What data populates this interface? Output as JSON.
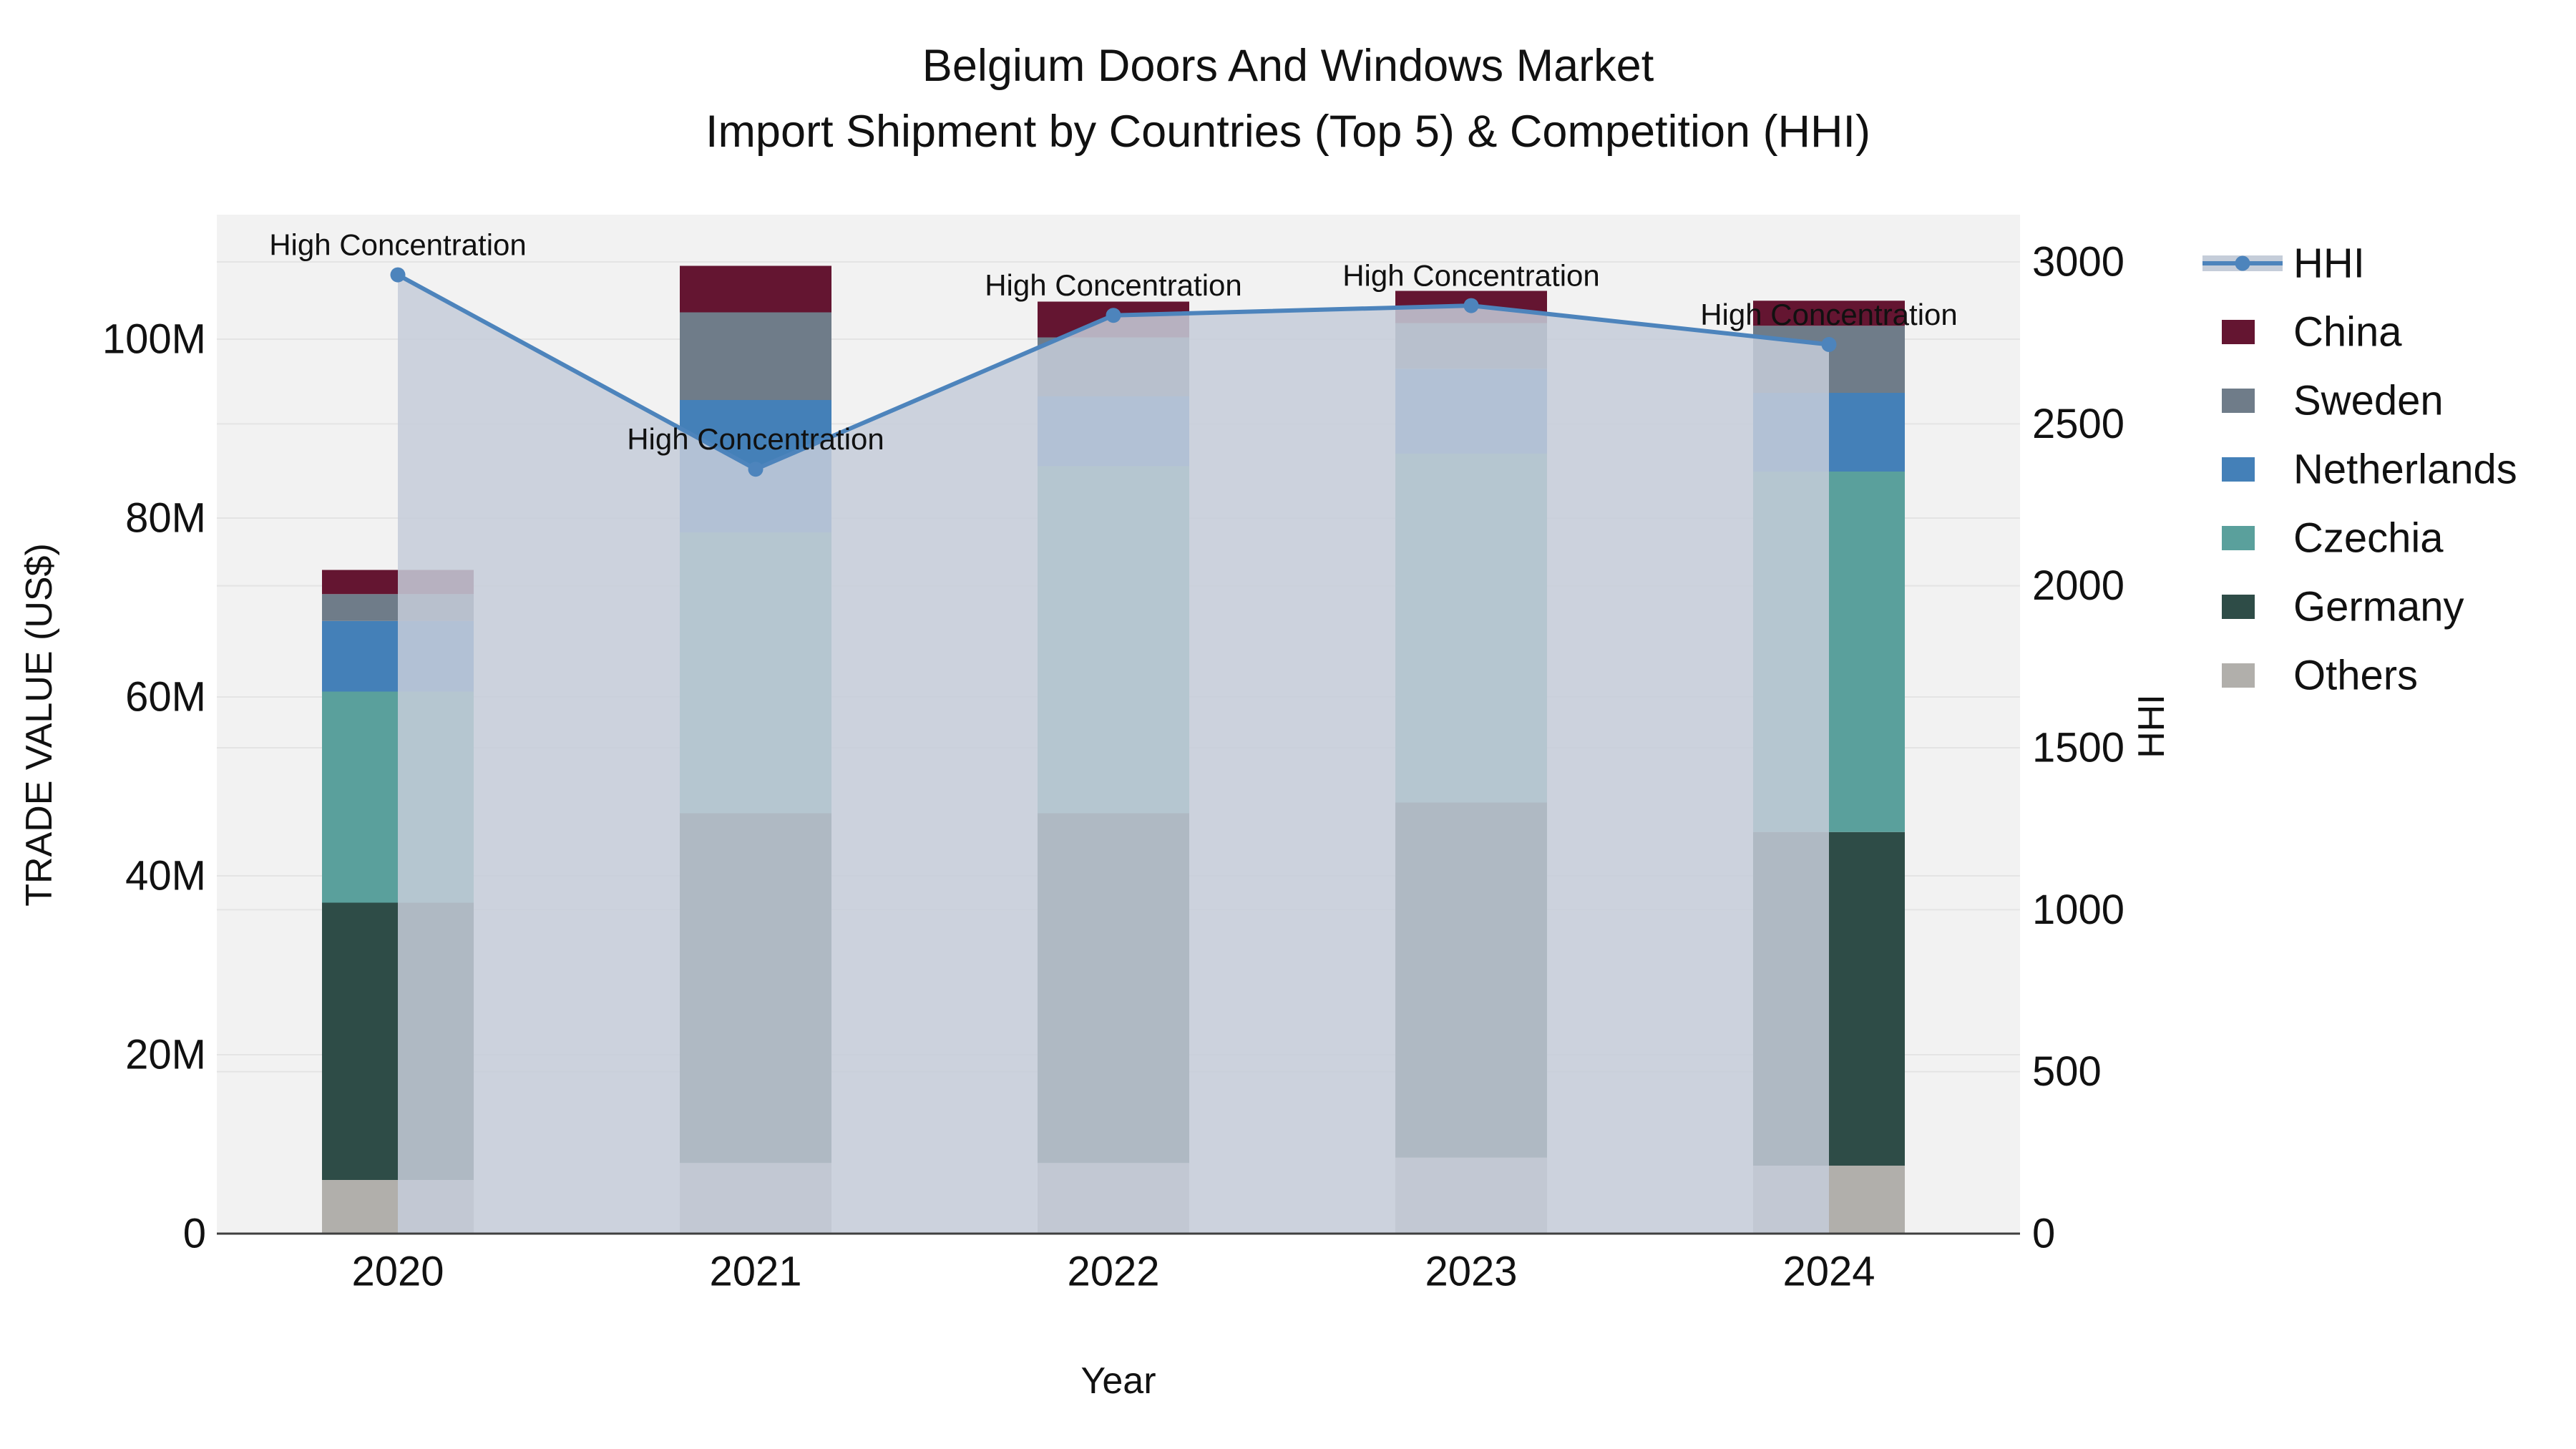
{
  "title": {
    "line1": "Belgium Doors And Windows Market",
    "line2": "Import Shipment by Countries (Top 5) & Competition (HHI)"
  },
  "axes": {
    "x": {
      "title": "Year",
      "ticks": [
        "2020",
        "2021",
        "2022",
        "2023",
        "2024"
      ]
    },
    "y_left": {
      "title": "TRADE VALUE (US$)",
      "ticks": [
        "0",
        "20M",
        "40M",
        "60M",
        "80M",
        "100M"
      ],
      "tick_values_musd": [
        0,
        20,
        40,
        60,
        80,
        100
      ]
    },
    "y_right": {
      "title": "HHI",
      "ticks": [
        "0",
        "500",
        "1000",
        "1500",
        "2000",
        "2500",
        "3000"
      ],
      "tick_values": [
        0,
        500,
        1000,
        1500,
        2000,
        2500,
        3000
      ]
    }
  },
  "annotation_text": "High Concentration",
  "colors": {
    "plot_bg": "#f2f2f2",
    "grid": "#e4e4e4",
    "axis_line": "#3f3f3f",
    "text": "#111111",
    "hhi_line": "#4d84bc",
    "hhi_area": "#c5cdd9",
    "china": "#641531",
    "sweden": "#6f7c89",
    "netherlands": "#4480b8",
    "czechia": "#5aa09c",
    "germany": "#2e4c47",
    "others": "#b1afab"
  },
  "legend": {
    "items": [
      {
        "label": "HHI",
        "type": "line",
        "color": "#4d84bc"
      },
      {
        "label": "China",
        "type": "swatch",
        "color": "#641531"
      },
      {
        "label": "Sweden",
        "type": "swatch",
        "color": "#6f7c89"
      },
      {
        "label": "Netherlands",
        "type": "swatch",
        "color": "#4480b8"
      },
      {
        "label": "Czechia",
        "type": "swatch",
        "color": "#5aa09c"
      },
      {
        "label": "Germany",
        "type": "swatch",
        "color": "#2e4c47"
      },
      {
        "label": "Others",
        "type": "swatch",
        "color": "#b1afab"
      }
    ]
  },
  "chart_data": {
    "type": "combo: stacked-bar (left axis, trade value in millions US$) + line with area fill (right axis, HHI)",
    "categories": [
      "2020",
      "2021",
      "2022",
      "2023",
      "2024"
    ],
    "stack_order_bottom_to_top": [
      "Others",
      "Germany",
      "Czechia",
      "Netherlands",
      "Sweden",
      "China"
    ],
    "series": [
      {
        "name": "China",
        "type": "bar",
        "values_musd": [
          2.7,
          5.2,
          4.0,
          3.6,
          2.8
        ]
      },
      {
        "name": "Sweden",
        "type": "bar",
        "values_musd": [
          3.0,
          9.8,
          6.6,
          5.1,
          7.5
        ]
      },
      {
        "name": "Netherlands",
        "type": "bar",
        "values_musd": [
          7.9,
          14.8,
          7.8,
          9.5,
          8.8
        ]
      },
      {
        "name": "Czechia",
        "type": "bar",
        "values_musd": [
          23.6,
          31.4,
          38.8,
          39.0,
          40.3
        ]
      },
      {
        "name": "Germany",
        "type": "bar",
        "values_musd": [
          31.0,
          39.1,
          39.1,
          39.7,
          37.3
        ]
      },
      {
        "name": "Others",
        "type": "bar",
        "values_musd": [
          6.0,
          7.9,
          7.9,
          8.5,
          7.6
        ]
      }
    ],
    "hhi_series": {
      "name": "HHI",
      "type": "line+area",
      "values": [
        2960,
        2360,
        2835,
        2865,
        2745
      ],
      "annotations": [
        "High Concentration",
        "High Concentration",
        "High Concentration",
        "High Concentration",
        "High Concentration"
      ]
    },
    "xlabel": "Year",
    "ylabel_left": "TRADE VALUE (US$)",
    "ylabel_right": "HHI",
    "ylim_left_musd": [
      0,
      113.9
    ],
    "ylim_right": [
      0,
      3000
    ],
    "grid": "horizontal, both axes",
    "legend_position": "right"
  }
}
